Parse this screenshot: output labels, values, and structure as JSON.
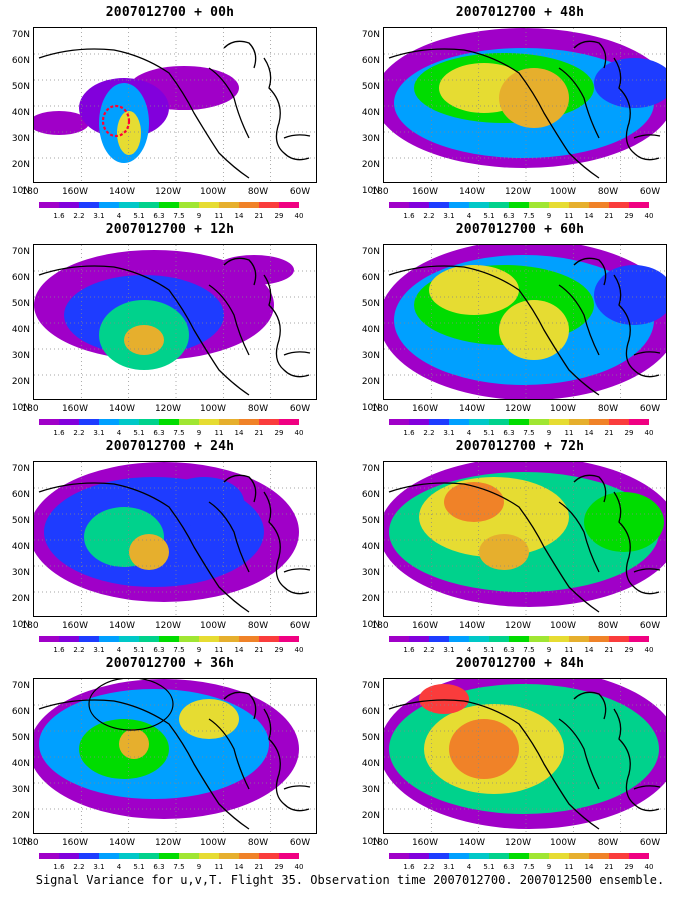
{
  "caption": "Signal Variance for u,v,T. Flight 35. Observation time 2007012700. 2007012500 ensemble.",
  "lat_labels": [
    "70N",
    "60N",
    "50N",
    "40N",
    "30N",
    "20N",
    "10N"
  ],
  "lon_labels": [
    "180",
    "160W",
    "140W",
    "120W",
    "100W",
    "80W",
    "60W"
  ],
  "colorbar": {
    "labels": [
      "1.6",
      "2.2",
      "3.1",
      "4",
      "5.1",
      "6.3",
      "7.5",
      "9",
      "11",
      "14",
      "21",
      "29",
      "40"
    ],
    "colors": [
      "#a000c8",
      "#8200dc",
      "#1e3cff",
      "#00a0ff",
      "#00c8c8",
      "#00d28c",
      "#00dc00",
      "#a0e632",
      "#e6dc32",
      "#e6af2d",
      "#f08228",
      "#fa3c3c",
      "#f00082"
    ]
  },
  "panels": [
    {
      "title": "2007012700 + 00h"
    },
    {
      "title": "2007012700 + 48h"
    },
    {
      "title": "2007012700 + 12h"
    },
    {
      "title": "2007012700 + 60h"
    },
    {
      "title": "2007012700 + 24h"
    },
    {
      "title": "2007012700 + 72h"
    },
    {
      "title": "2007012700 + 36h"
    },
    {
      "title": "2007012700 + 84h"
    }
  ]
}
